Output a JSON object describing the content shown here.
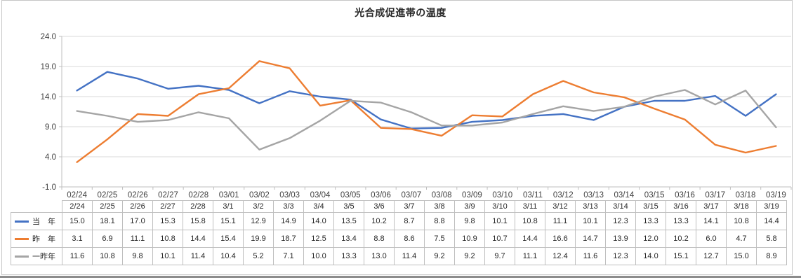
{
  "title": "光合成促進帯の温度",
  "chart_data": {
    "type": "line",
    "title": "光合成促進帯の温度",
    "categories": [
      "02/24",
      "02/25",
      "02/26",
      "02/27",
      "02/28",
      "03/01",
      "03/02",
      "03/03",
      "03/04",
      "03/05",
      "03/06",
      "03/07",
      "03/08",
      "03/09",
      "03/10",
      "03/11",
      "03/12",
      "03/13",
      "03/14",
      "03/15",
      "03/16",
      "03/17",
      "03/18",
      "03/19"
    ],
    "table_categories": [
      "2/24",
      "2/25",
      "2/26",
      "2/27",
      "2/28",
      "3/1",
      "3/2",
      "3/3",
      "3/4",
      "3/5",
      "3/6",
      "3/7",
      "3/8",
      "3/9",
      "3/10",
      "3/11",
      "3/12",
      "3/13",
      "3/14",
      "3/15",
      "3/16",
      "3/17",
      "3/18",
      "3/19"
    ],
    "series": [
      {
        "name": "当　年",
        "color": "#4472C4",
        "values": [
          15.0,
          18.1,
          17.0,
          15.3,
          15.8,
          15.1,
          12.9,
          14.9,
          14.0,
          13.5,
          10.2,
          8.7,
          8.8,
          9.8,
          10.1,
          10.8,
          11.1,
          10.1,
          12.3,
          13.3,
          13.3,
          14.1,
          10.8,
          14.4
        ]
      },
      {
        "name": "昨　年",
        "color": "#ED7D31",
        "values": [
          3.1,
          6.9,
          11.1,
          10.8,
          14.4,
          15.4,
          19.9,
          18.7,
          12.5,
          13.4,
          8.8,
          8.6,
          7.5,
          10.9,
          10.7,
          14.4,
          16.6,
          14.7,
          13.9,
          12.0,
          10.2,
          6.0,
          4.7,
          5.8
        ]
      },
      {
        "name": "一昨年",
        "color": "#A5A5A5",
        "values": [
          11.6,
          10.8,
          9.8,
          10.1,
          11.4,
          10.4,
          5.2,
          7.1,
          10.0,
          13.3,
          13.0,
          11.4,
          9.2,
          9.2,
          9.7,
          11.1,
          12.4,
          11.6,
          12.3,
          14.0,
          15.1,
          12.7,
          15.0,
          8.9
        ]
      }
    ],
    "ylim": [
      -1.0,
      24.0
    ],
    "y_tick_step": 5.0,
    "y_tick_labels": [
      "-1.0",
      "4.0",
      "9.0",
      "14.0",
      "19.0",
      "24.0"
    ],
    "grid": true,
    "legend_position": "table-left"
  },
  "colors": {
    "gridline": "#d9d9d9",
    "axis": "#bfbfbf",
    "tick": "#bfbfbf",
    "axis_text": "#404040",
    "table_border": "#bfbfbf",
    "frame_border": "#c6c6c6",
    "bottom_bar": "#8c8c8c"
  }
}
